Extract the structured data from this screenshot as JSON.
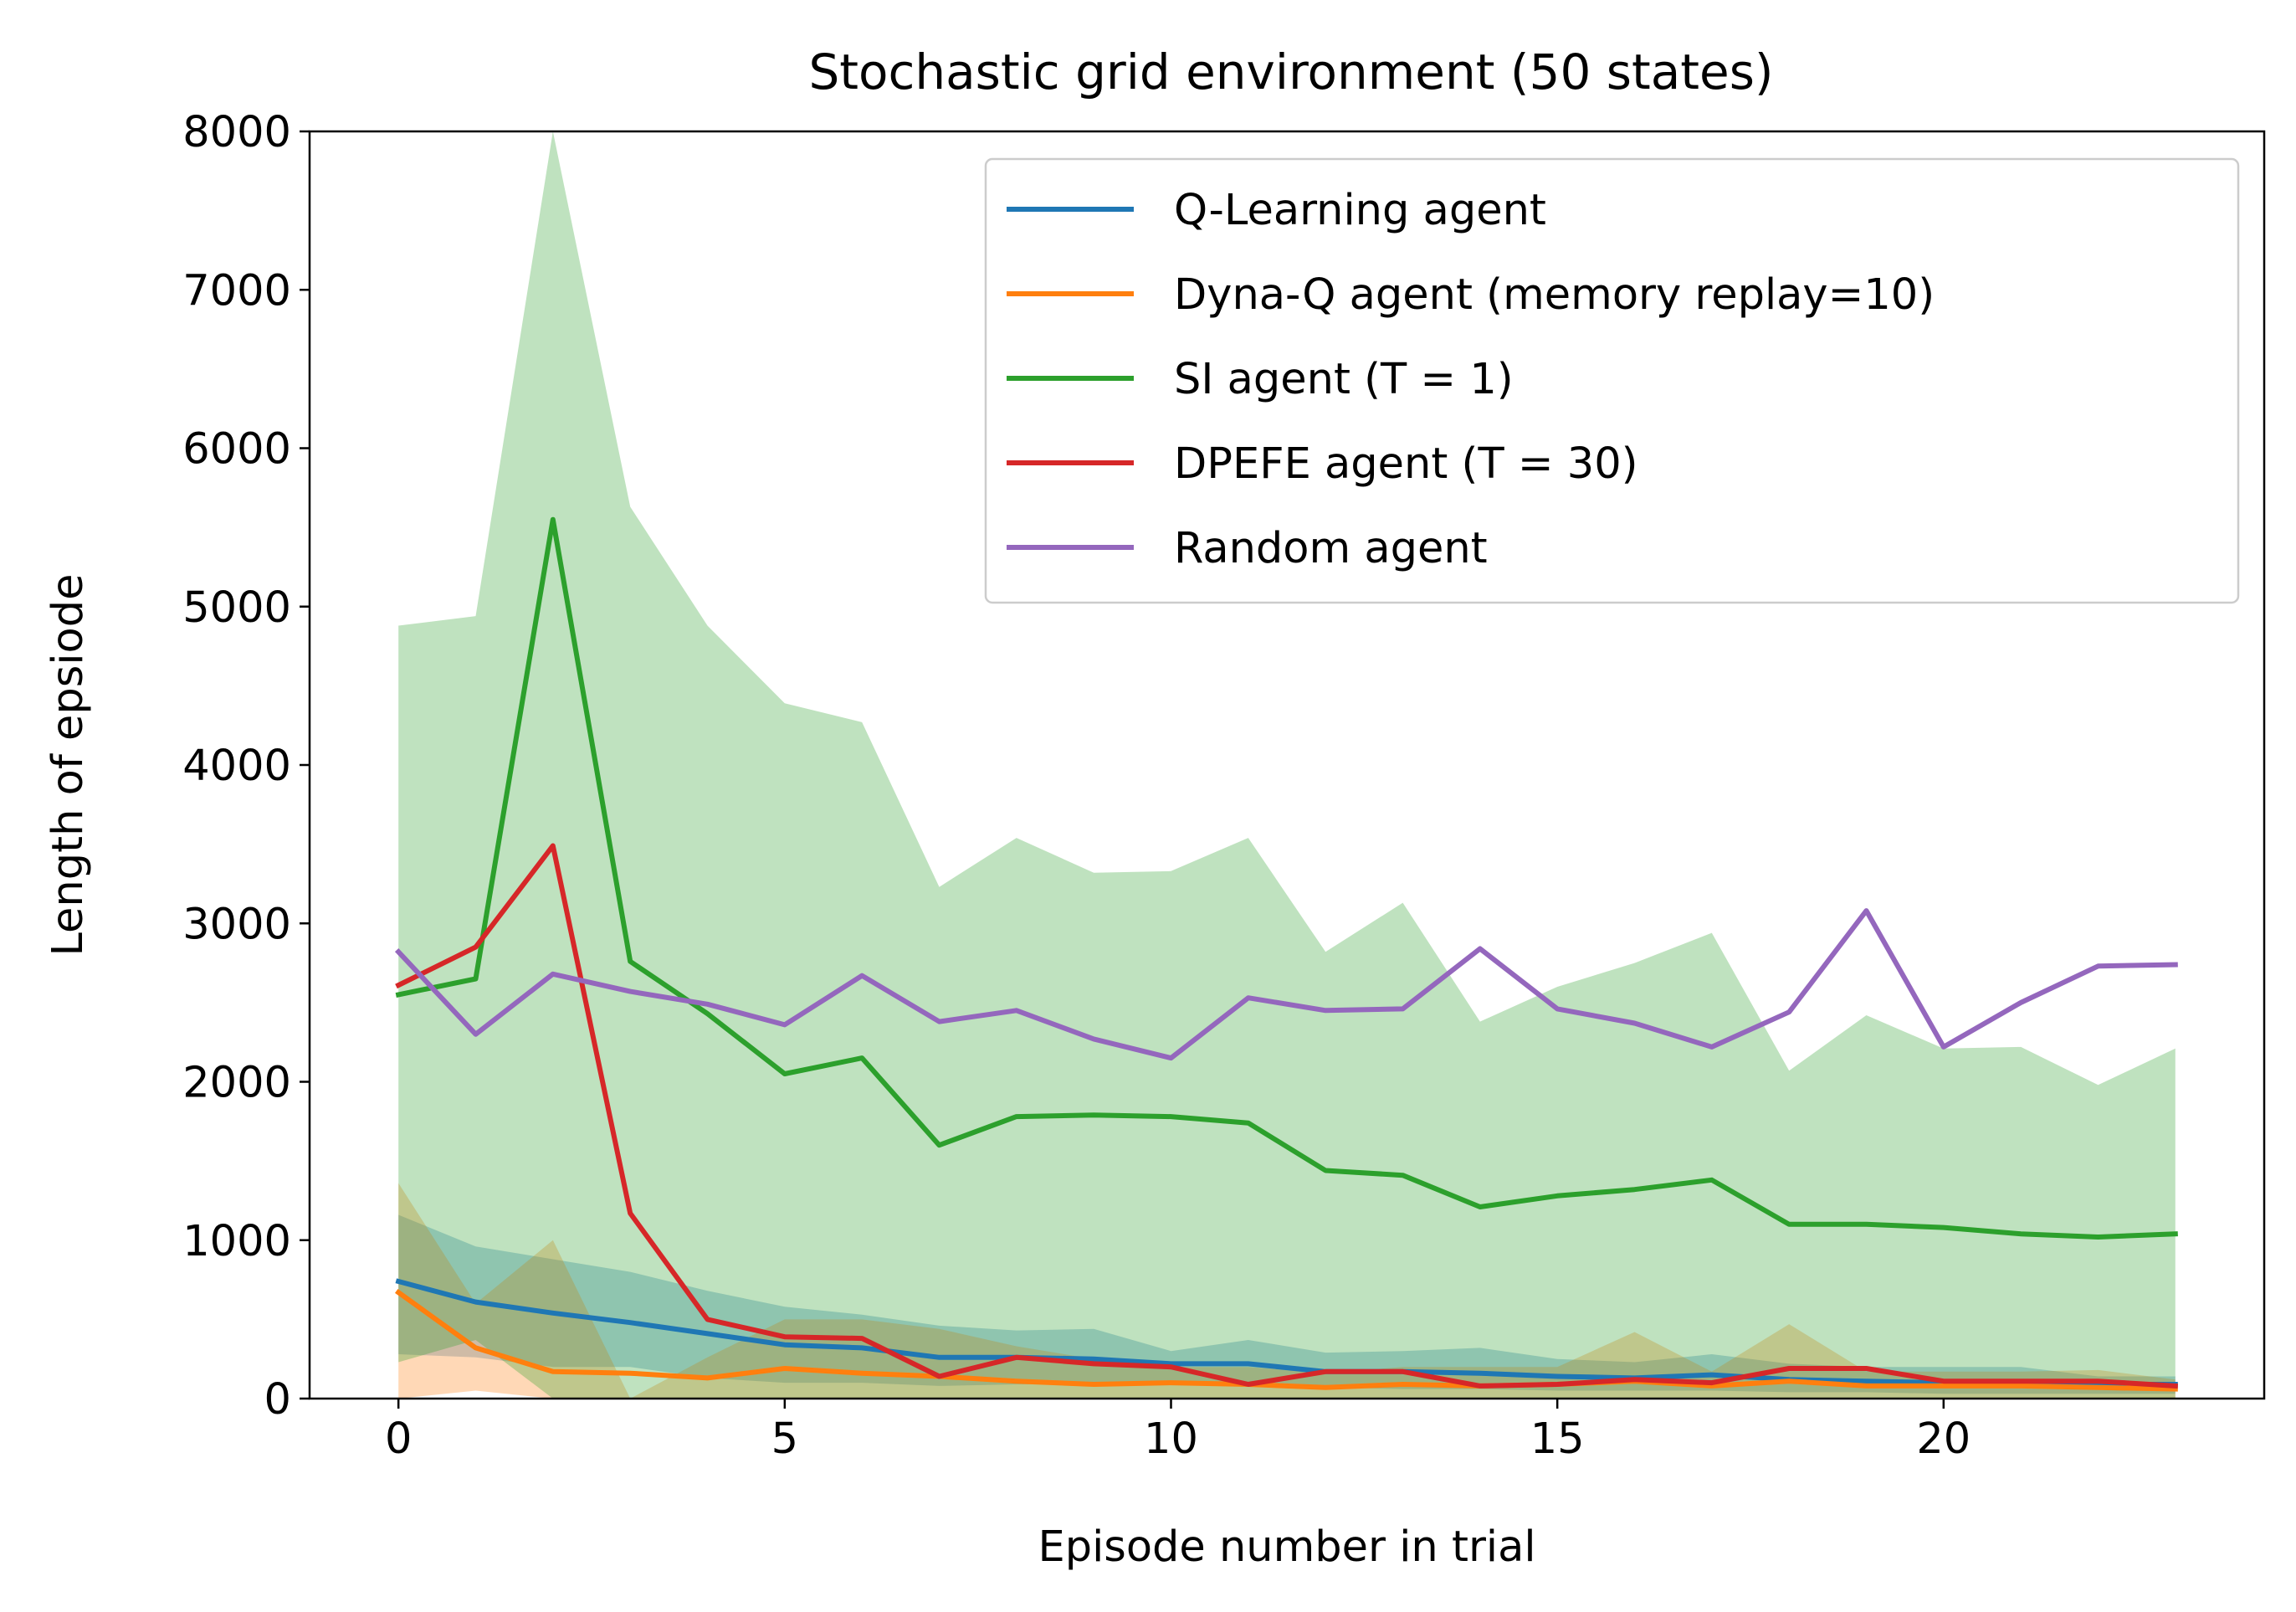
{
  "chart_data": {
    "type": "line",
    "title": "Stochastic grid environment (50 states)",
    "xlabel": "Episode number in trial",
    "ylabel": "Length of epsiode",
    "xlim": [
      -1.15,
      24.15
    ],
    "ylim": [
      0,
      8000
    ],
    "xticks": [
      0,
      5,
      10,
      15,
      20
    ],
    "yticks": [
      0,
      1000,
      2000,
      3000,
      4000,
      5000,
      6000,
      7000,
      8000
    ],
    "grid": false,
    "legend_position": "upper right",
    "x": [
      0,
      1,
      2,
      3,
      4,
      5,
      6,
      7,
      8,
      9,
      10,
      11,
      12,
      13,
      14,
      15,
      16,
      17,
      18,
      19,
      20,
      21,
      22,
      23
    ],
    "series": [
      {
        "name": "Q-Learning agent",
        "color": "#1f77b4",
        "values": [
          740,
          610,
          540,
          480,
          410,
          340,
          320,
          260,
          260,
          250,
          220,
          220,
          170,
          170,
          160,
          140,
          130,
          150,
          120,
          110,
          100,
          95,
          90,
          90
        ],
        "band_lower": [
          280,
          260,
          200,
          200,
          130,
          100,
          100,
          80,
          90,
          90,
          90,
          80,
          70,
          60,
          60,
          50,
          50,
          50,
          40,
          40,
          30,
          30,
          30,
          30
        ],
        "band_upper": [
          1160,
          960,
          880,
          800,
          680,
          580,
          530,
          460,
          430,
          440,
          300,
          370,
          290,
          300,
          320,
          250,
          230,
          280,
          220,
          200,
          200,
          200,
          140,
          140
        ]
      },
      {
        "name": "Dyna-Q agent (memory replay=10)",
        "color": "#ff7f0e",
        "values": [
          670,
          320,
          170,
          160,
          130,
          190,
          160,
          140,
          110,
          90,
          100,
          90,
          70,
          90,
          80,
          90,
          110,
          80,
          110,
          80,
          80,
          80,
          70,
          60
        ],
        "band_lower": [
          0,
          50,
          0,
          0,
          0,
          0,
          0,
          0,
          0,
          0,
          0,
          0,
          0,
          0,
          0,
          0,
          0,
          0,
          0,
          0,
          0,
          0,
          0,
          0
        ],
        "band_upper": [
          1360,
          600,
          1000,
          0,
          260,
          500,
          500,
          440,
          330,
          250,
          200,
          200,
          160,
          200,
          200,
          200,
          420,
          170,
          470,
          170,
          170,
          170,
          180,
          120
        ]
      },
      {
        "name": "SI agent (T = 1)",
        "color": "#2ca02c",
        "values": [
          2550,
          2650,
          5550,
          2760,
          2430,
          2050,
          2150,
          1600,
          1780,
          1790,
          1780,
          1740,
          1440,
          1410,
          1210,
          1280,
          1320,
          1380,
          1100,
          1100,
          1080,
          1040,
          1020,
          1040
        ],
        "band_lower": [
          230,
          370,
          0,
          0,
          0,
          0,
          0,
          0,
          0,
          0,
          0,
          0,
          0,
          0,
          0,
          0,
          0,
          0,
          0,
          0,
          0,
          0,
          0,
          0
        ],
        "band_upper": [
          4880,
          4940,
          8000,
          5630,
          4880,
          4390,
          4270,
          3230,
          3540,
          3320,
          3330,
          3540,
          2820,
          3130,
          2380,
          2600,
          2750,
          2940,
          2070,
          2420,
          2210,
          2220,
          1980,
          2210
        ]
      },
      {
        "name": "DPEFE agent (T = 30)",
        "color": "#d62728",
        "values": [
          2610,
          2850,
          3490,
          1170,
          500,
          390,
          380,
          140,
          260,
          220,
          200,
          90,
          170,
          170,
          80,
          90,
          120,
          100,
          190,
          190,
          110,
          110,
          110,
          80
        ]
      },
      {
        "name": "Random agent",
        "color": "#9467bd",
        "values": [
          2820,
          2300,
          2680,
          2570,
          2490,
          2360,
          2670,
          2380,
          2450,
          2270,
          2150,
          2530,
          2450,
          2460,
          2840,
          2460,
          2370,
          2220,
          2440,
          3080,
          2220,
          2500,
          2730,
          2740
        ]
      }
    ]
  }
}
